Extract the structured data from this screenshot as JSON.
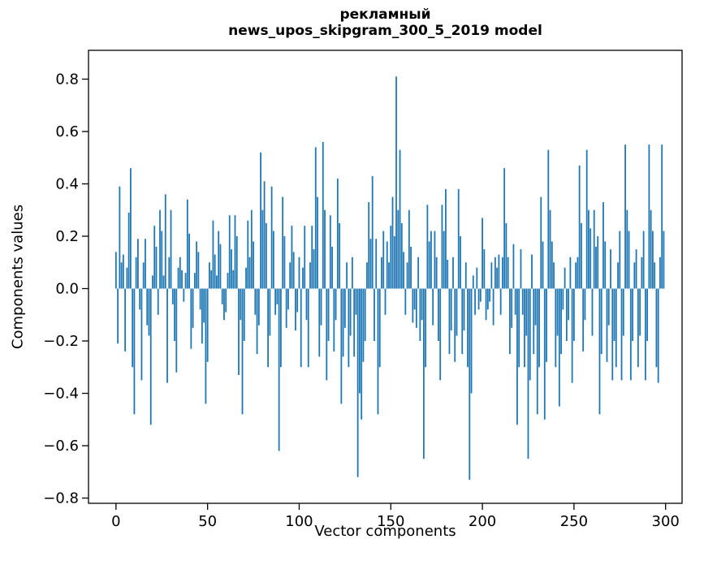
{
  "figure": {
    "title_line1": "рекламный",
    "title_line2": "news_upos_skipgram_300_5_2019 model",
    "xlabel": "Vector components",
    "ylabel": "Components values"
  },
  "chart_data": {
    "type": "bar",
    "title": "рекламный\nnews_upos_skipgram_300_5_2019 model",
    "xlabel": "Vector components",
    "ylabel": "Components values",
    "bar_color": "#1f77b4",
    "n_components": 300,
    "grid": false,
    "legend": "none",
    "xlim": [
      -15,
      309
    ],
    "ylim": [
      -0.82,
      0.91
    ],
    "xticks": [
      0,
      50,
      100,
      150,
      200,
      250,
      300
    ],
    "xtick_labels": [
      "0",
      "50",
      "100",
      "150",
      "200",
      "250",
      "300"
    ],
    "yticks": [
      -0.8,
      -0.6,
      -0.4,
      -0.2,
      0.0,
      0.2,
      0.4,
      0.6,
      0.8
    ],
    "ytick_labels": [
      "−0.8",
      "−0.6",
      "−0.4",
      "−0.2",
      "0.0",
      "0.2",
      "0.4",
      "0.6",
      "0.8"
    ],
    "values": [
      0.14,
      -0.21,
      0.39,
      0.1,
      0.13,
      -0.24,
      0.08,
      0.29,
      0.46,
      -0.3,
      -0.48,
      0.12,
      0.19,
      -0.08,
      -0.35,
      0.1,
      0.19,
      -0.14,
      -0.18,
      -0.52,
      0.05,
      0.24,
      0.16,
      -0.1,
      0.3,
      0.22,
      0.05,
      0.36,
      -0.36,
      0.12,
      0.3,
      -0.06,
      -0.2,
      -0.32,
      0.08,
      0.12,
      0.07,
      -0.05,
      0.06,
      0.34,
      0.21,
      -0.23,
      -0.15,
      0.06,
      0.18,
      0.14,
      -0.08,
      -0.21,
      -0.13,
      -0.44,
      -0.28,
      0.1,
      0.07,
      0.26,
      0.13,
      0.05,
      0.22,
      0.17,
      -0.06,
      -0.12,
      -0.09,
      0.06,
      0.28,
      0.15,
      0.07,
      0.28,
      0.2,
      -0.33,
      -0.12,
      -0.48,
      -0.2,
      0.08,
      0.26,
      0.12,
      0.3,
      0.18,
      -0.1,
      -0.25,
      -0.14,
      0.52,
      0.3,
      0.41,
      0.25,
      -0.3,
      -0.18,
      0.39,
      0.22,
      -0.1,
      -0.06,
      -0.62,
      -0.3,
      0.35,
      0.2,
      -0.15,
      -0.08,
      0.1,
      0.24,
      0.14,
      -0.16,
      -0.09,
      0.12,
      -0.3,
      0.08,
      0.24,
      -0.12,
      -0.3,
      0.1,
      0.24,
      0.15,
      0.54,
      0.35,
      -0.26,
      -0.14,
      0.56,
      0.3,
      -0.35,
      -0.2,
      0.28,
      0.16,
      -0.24,
      -0.12,
      0.42,
      0.25,
      -0.44,
      -0.26,
      -0.15,
      0.1,
      -0.3,
      -0.18,
      0.12,
      -0.26,
      -0.1,
      -0.72,
      -0.4,
      -0.5,
      -0.28,
      -0.2,
      0.1,
      0.33,
      0.19,
      0.43,
      -0.2,
      0.19,
      -0.48,
      -0.3,
      0.12,
      0.22,
      -0.1,
      0.18,
      0.1,
      0.24,
      0.35,
      0.2,
      0.81,
      0.3,
      0.53,
      0.25,
      0.14,
      -0.1,
      0.1,
      0.3,
      0.16,
      -0.13,
      -0.08,
      -0.15,
      0.12,
      -0.2,
      -0.12,
      -0.65,
      -0.3,
      0.32,
      0.18,
      0.22,
      -0.14,
      0.22,
      0.12,
      -0.2,
      -0.35,
      0.32,
      0.22,
      0.38,
      0.11,
      -0.25,
      -0.16,
      0.12,
      -0.28,
      -0.18,
      0.38,
      0.2,
      -0.25,
      -0.16,
      0.1,
      -0.3,
      -0.73,
      -0.4,
      0.05,
      -0.1,
      0.08,
      -0.08,
      -0.05,
      0.27,
      0.15,
      -0.12,
      -0.08,
      -0.05,
      0.1,
      -0.14,
      0.12,
      0.08,
      0.13,
      -0.1,
      0.12,
      0.46,
      0.25,
      0.12,
      -0.25,
      -0.15,
      0.17,
      -0.1,
      -0.52,
      -0.3,
      0.15,
      -0.1,
      -0.3,
      -0.18,
      -0.65,
      -0.35,
      0.13,
      -0.25,
      -0.14,
      -0.48,
      -0.3,
      0.35,
      0.18,
      -0.5,
      -0.28,
      0.53,
      0.3,
      0.18,
      0.1,
      -0.3,
      -0.18,
      -0.45,
      -0.25,
      -0.08,
      0.08,
      -0.2,
      -0.12,
      0.12,
      -0.36,
      -0.2,
      0.1,
      0.12,
      0.47,
      0.25,
      -0.24,
      -0.12,
      0.53,
      0.3,
      0.23,
      -0.18,
      0.3,
      0.16,
      0.2,
      -0.48,
      -0.25,
      0.33,
      0.18,
      -0.28,
      -0.14,
      0.15,
      -0.35,
      -0.2,
      -0.3,
      0.1,
      0.22,
      -0.35,
      -0.18,
      0.55,
      0.3,
      0.22,
      -0.35,
      -0.2,
      0.1,
      0.15,
      -0.3,
      -0.18,
      0.12,
      0.22,
      -0.35,
      -0.2,
      0.55,
      0.3,
      0.22,
      0.1,
      -0.3,
      -0.36,
      0.12,
      0.55,
      0.22
    ]
  }
}
